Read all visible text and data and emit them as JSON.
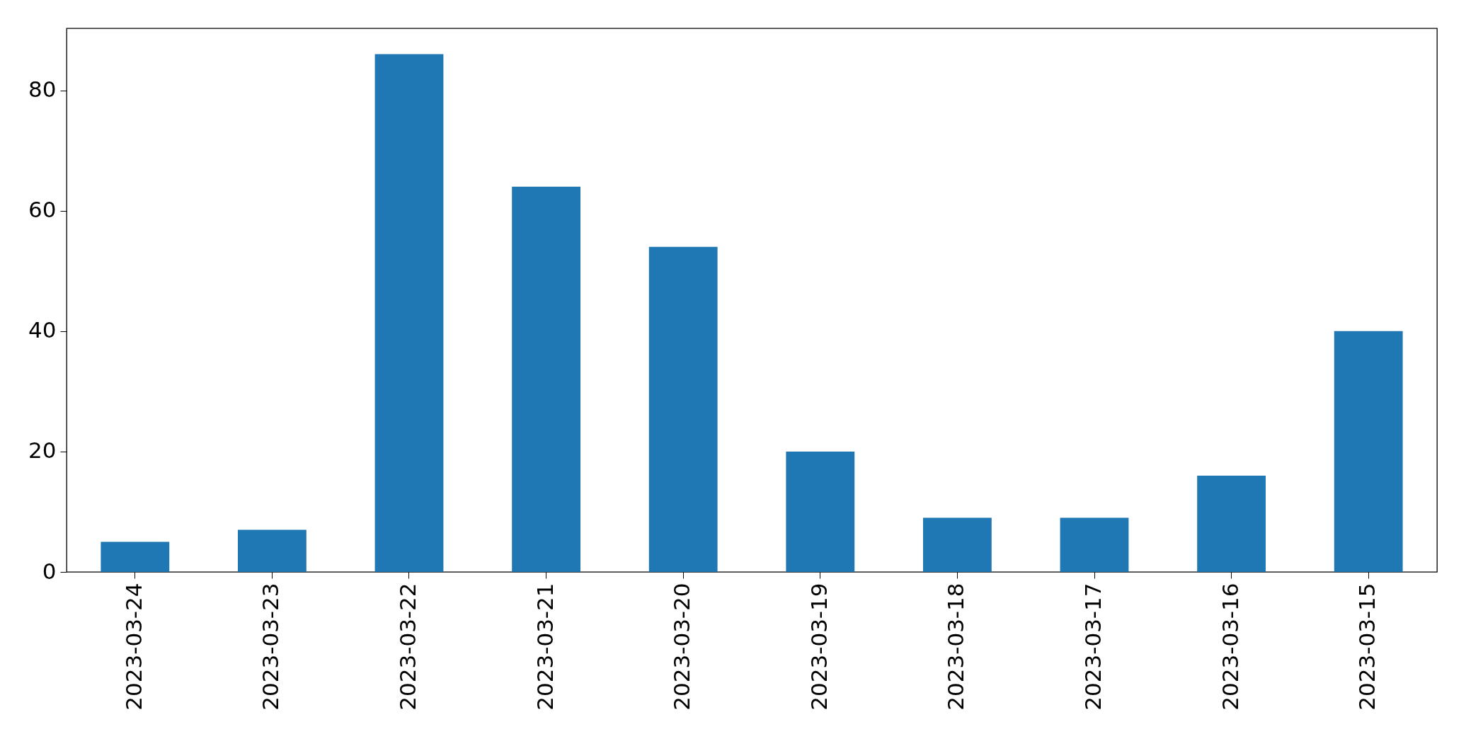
{
  "chart_data": {
    "type": "bar",
    "categories": [
      "2023-03-24",
      "2023-03-23",
      "2023-03-22",
      "2023-03-21",
      "2023-03-20",
      "2023-03-19",
      "2023-03-18",
      "2023-03-17",
      "2023-03-16",
      "2023-03-15"
    ],
    "values": [
      5,
      7,
      86,
      64,
      54,
      20,
      9,
      9,
      16,
      40
    ],
    "color": "#1f77b4",
    "ylim": [
      0,
      90.3
    ],
    "yticks": [
      0,
      20,
      40,
      60,
      80
    ],
    "grid": false
  }
}
